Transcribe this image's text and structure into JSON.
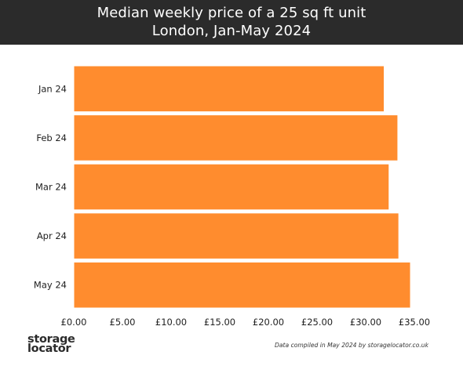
{
  "chart_data": {
    "type": "bar",
    "orientation": "horizontal",
    "title": "Median weekly price of a 25 sq ft unit",
    "subtitle": "London, Jan-May 2024",
    "categories": [
      "Jan 24",
      "Feb 24",
      "Mar 24",
      "Apr 24",
      "May 24"
    ],
    "values": [
      31.9,
      33.3,
      32.4,
      33.4,
      34.6
    ],
    "xlim": [
      0,
      35
    ],
    "xticks": [
      0,
      5,
      10,
      15,
      20,
      25,
      30,
      35
    ],
    "xtick_labels": [
      "£0.00",
      "£5.00",
      "£10.00",
      "£15.00",
      "£20.00",
      "£25.00",
      "£30.00",
      "£35.00"
    ],
    "xlabel": "",
    "ylabel": "",
    "grid": false,
    "bar_color": "#FF8C2E",
    "bar_edge_color": "#ffffff"
  },
  "header": {
    "background": "#2b2b2b"
  },
  "footer": {
    "brand_line1": "storage",
    "brand_line2": "locator",
    "note": "Data compiled in May 2024 by storagelocator.co.uk"
  }
}
